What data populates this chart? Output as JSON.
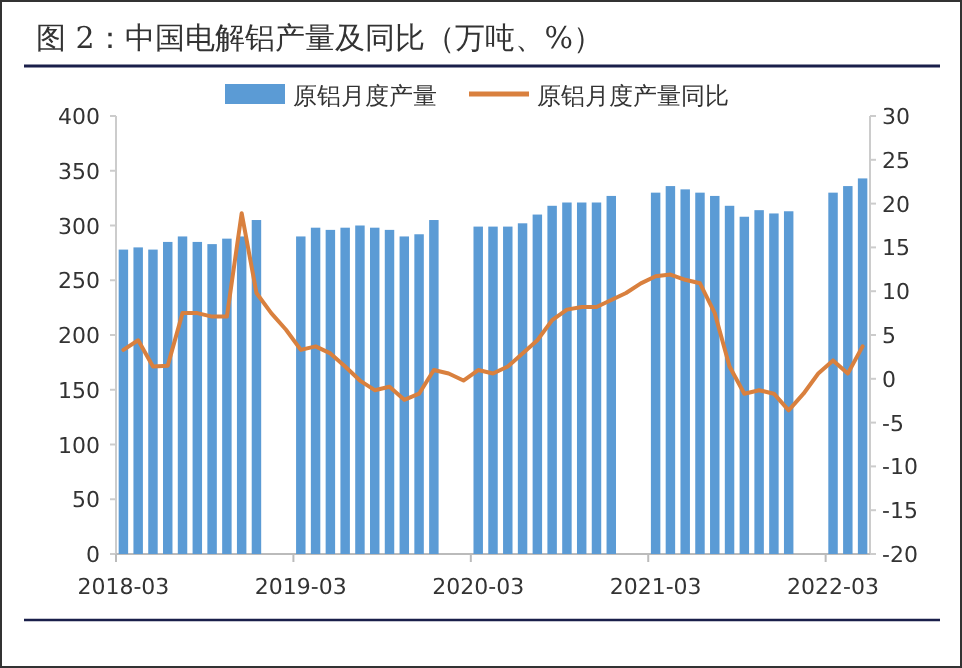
{
  "chart_data": {
    "type": "bar",
    "title": "图 2：中国电解铝产量及同比（万吨、%）",
    "categories": [
      "2018-03",
      null,
      null,
      null,
      null,
      null,
      null,
      null,
      null,
      null,
      null,
      null,
      "2019-03",
      null,
      null,
      null,
      null,
      null,
      null,
      null,
      null,
      null,
      null,
      null,
      "2020-03",
      null,
      null,
      null,
      null,
      null,
      null,
      null,
      null,
      null,
      null,
      null,
      "2021-03",
      null,
      null,
      null,
      null,
      null,
      null,
      null,
      null,
      null,
      null,
      null,
      "2022-03",
      null,
      null
    ],
    "series": [
      {
        "name": "原铝月度产量",
        "color": "#5b9bd5",
        "values": [
          278,
          280,
          278,
          285,
          290,
          285,
          283,
          288,
          290,
          305,
          null,
          null,
          290,
          298,
          296,
          298,
          300,
          298,
          296,
          290,
          292,
          305,
          null,
          null,
          299,
          299,
          299,
          302,
          310,
          318,
          321,
          321,
          321,
          327,
          null,
          null,
          330,
          336,
          333,
          330,
          327,
          318,
          308,
          314,
          311,
          313,
          null,
          null,
          330,
          336,
          343
        ]
      },
      {
        "name": "原铝月度产量同比",
        "type": "line",
        "axis": "y2",
        "color": "#d9803e",
        "values": [
          3.3,
          4.4,
          1.4,
          1.5,
          7.5,
          7.5,
          7.1,
          7.1,
          18.9,
          9.8,
          7.5,
          5.6,
          3.3,
          3.7,
          2.9,
          1.4,
          -0.2,
          -1.3,
          -0.9,
          -2.4,
          -1.7,
          1.0,
          0.6,
          -0.2,
          1.0,
          0.6,
          1.4,
          2.9,
          4.4,
          6.7,
          7.9,
          8.2,
          8.2,
          9.0,
          9.8,
          10.9,
          11.7,
          11.9,
          11.3,
          10.9,
          7.5,
          1.4,
          -1.7,
          -1.3,
          -1.7,
          -3.6,
          -1.7,
          0.6,
          2.1,
          0.6,
          3.7
        ]
      }
    ],
    "ylim": [
      0,
      400
    ],
    "yticks": [
      0,
      50,
      100,
      150,
      200,
      250,
      300,
      350,
      400
    ],
    "y2lim": [
      -20,
      30
    ],
    "y2ticks": [
      -20,
      -15,
      -10,
      -5,
      0,
      5,
      10,
      15,
      20,
      25,
      30
    ],
    "legend": "top"
  }
}
